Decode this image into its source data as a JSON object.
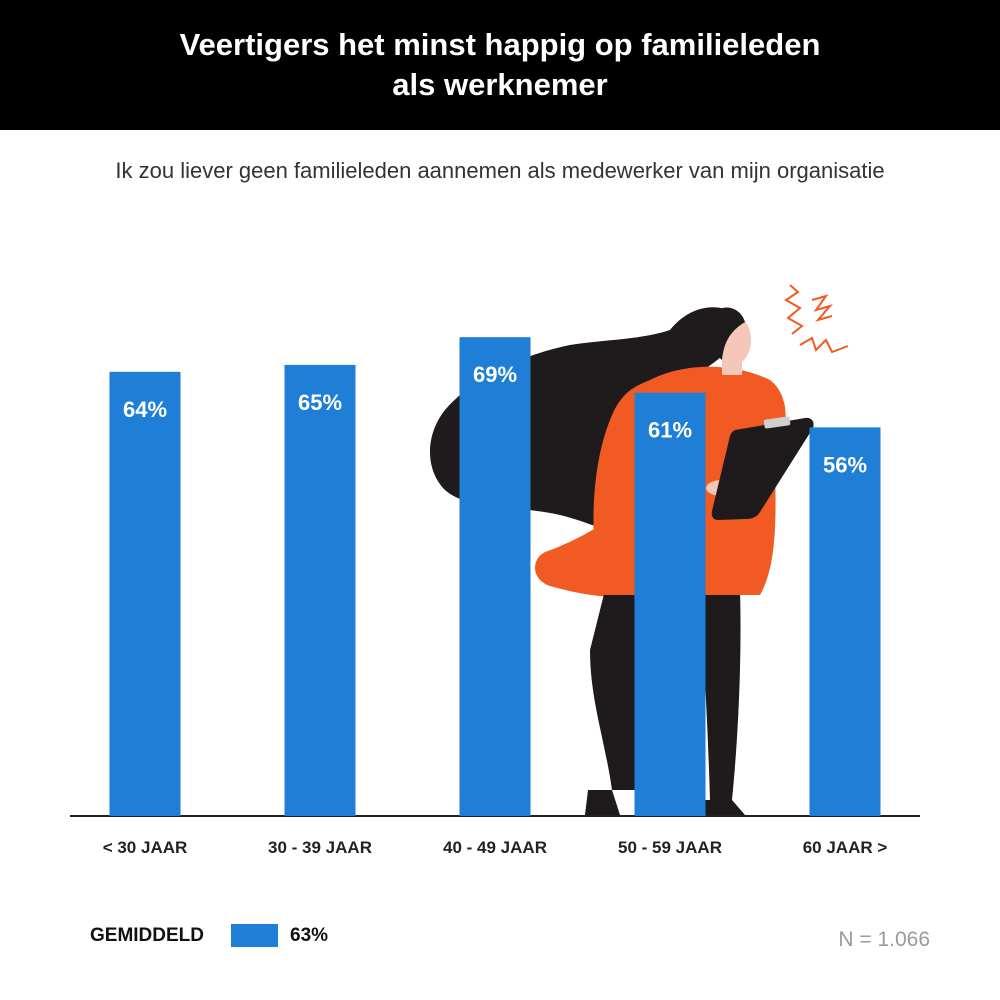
{
  "header": {
    "title_line1": "Veertigers het minst happig op familieleden",
    "title_line2": "als werknemer"
  },
  "subtitle": "Ik zou liever geen familieleden aannemen als medewerker van mijn organisatie",
  "chart_data": {
    "type": "bar",
    "categories": [
      "< 30 JAAR",
      "30 - 39 JAAR",
      "40 - 49 JAAR",
      "50 - 59 JAAR",
      "60 JAAR >"
    ],
    "values": [
      64,
      65,
      69,
      61,
      56
    ],
    "value_labels": [
      "64%",
      "65%",
      "69%",
      "61%",
      "56%"
    ],
    "unit": "%",
    "ylim": [
      0,
      100
    ],
    "grid": false,
    "bar_color": "#1f7ed6"
  },
  "legend": {
    "label": "GEMIDDELD",
    "value": "63%",
    "color": "#1f7ed6"
  },
  "note": "N = 1.066",
  "illustration": {
    "icon": "woman-with-clipboard-illustration",
    "colors": {
      "hair": "#1f1a1c",
      "shirt": "#f15a22",
      "skin": "#f4c7b8"
    }
  }
}
